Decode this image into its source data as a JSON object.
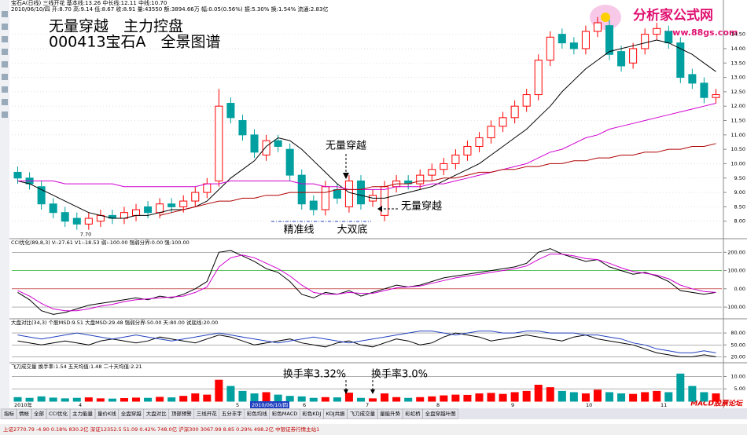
{
  "header": {
    "line1": "宝石A(日线) 三线开花 基本线:13.26 中长线:12.11 中线:10.70",
    "line2": "2010/06/10/四 开:8.70 高:9.14 低:8.67 收:8.91 量:43550 额:3894.66万 幅:0.05(0.56%) 振:5.30% 换:1.54% 流通:2.83亿"
  },
  "overlay_title": {
    "line1": "无量穿越　主力控盘",
    "line2": "000413宝石A　全景图谱"
  },
  "logo": {
    "name": "分析家公式网",
    "url": "www.88gs.com"
  },
  "footer_logo": "MACD股票论坛",
  "chart_data": [
    {
      "type": "candlestick",
      "title": "宝石A(日线)",
      "up_color": "#ff0000",
      "down_color": "#00a0a0",
      "open": [
        9.7,
        9.5,
        9.2,
        8.6,
        8.3,
        8.1,
        7.9,
        8.0,
        8.2,
        8.1,
        8.2,
        8.5,
        8.3,
        8.6,
        8.5,
        8.7,
        9.0,
        9.4,
        12.1,
        11.5,
        11.0,
        10.3,
        10.8,
        10.5,
        9.6,
        8.7,
        8.4,
        9.1,
        8.5,
        9.4,
        8.7,
        8.2,
        9.2,
        9.4,
        9.3,
        9.6,
        9.8,
        10.0,
        10.3,
        10.6,
        10.9,
        11.3,
        11.6,
        12.0,
        12.4,
        13.6,
        14.5,
        14.2,
        14.0,
        14.6,
        14.8,
        13.9,
        13.5,
        14.0,
        14.5,
        14.6,
        14.2,
        13.1,
        12.8,
        12.3
      ],
      "high": [
        9.9,
        9.7,
        9.4,
        8.8,
        8.5,
        8.3,
        8.3,
        8.4,
        8.4,
        8.5,
        8.6,
        8.7,
        8.8,
        8.8,
        8.9,
        9.2,
        9.5,
        12.6,
        12.3,
        11.7,
        11.2,
        11.0,
        11.0,
        10.7,
        9.8,
        8.9,
        9.4,
        9.3,
        9.6,
        9.6,
        9.1,
        9.4,
        9.6,
        9.6,
        9.8,
        10.0,
        10.2,
        10.5,
        10.8,
        11.1,
        11.5,
        11.8,
        12.2,
        12.6,
        13.8,
        14.6,
        14.7,
        14.4,
        14.8,
        15.1,
        15.0,
        14.1,
        14.2,
        14.7,
        14.9,
        14.8,
        14.4,
        13.3,
        13.0,
        12.6
      ],
      "low": [
        9.3,
        9.1,
        8.4,
        8.1,
        7.8,
        7.7,
        7.7,
        7.8,
        7.9,
        7.9,
        8.0,
        8.1,
        8.1,
        8.3,
        8.3,
        8.5,
        8.8,
        9.2,
        11.4,
        10.8,
        10.2,
        10.1,
        10.4,
        9.4,
        8.4,
        8.2,
        8.2,
        8.6,
        8.3,
        8.4,
        8.5,
        8.0,
        9.0,
        9.1,
        9.1,
        9.4,
        9.6,
        9.8,
        10.1,
        10.4,
        10.7,
        11.1,
        11.4,
        11.8,
        12.2,
        13.4,
        14.0,
        13.8,
        13.8,
        14.4,
        13.6,
        13.2,
        13.3,
        13.8,
        14.3,
        14.0,
        12.8,
        12.6,
        12.1,
        12.1
      ],
      "close": [
        9.5,
        9.3,
        8.6,
        8.3,
        8.0,
        7.9,
        8.1,
        8.2,
        8.1,
        8.3,
        8.4,
        8.3,
        8.6,
        8.5,
        8.7,
        9.0,
        9.3,
        12.0,
        11.6,
        11.0,
        10.4,
        10.8,
        10.6,
        9.6,
        8.6,
        8.4,
        9.2,
        8.8,
        9.4,
        8.6,
        8.9,
        9.2,
        9.4,
        9.3,
        9.6,
        9.8,
        10.0,
        10.3,
        10.6,
        10.9,
        11.3,
        11.6,
        12.0,
        12.4,
        13.6,
        14.4,
        14.2,
        14.0,
        14.6,
        14.9,
        13.8,
        13.4,
        14.0,
        14.5,
        14.7,
        14.2,
        13.0,
        12.8,
        12.3,
        12.4
      ],
      "series": [
        {
          "color": "#000000",
          "values": [
            9.4,
            9.3,
            9.1,
            8.9,
            8.7,
            8.5,
            8.3,
            8.2,
            8.1,
            8.1,
            8.2,
            8.2,
            8.3,
            8.4,
            8.4,
            8.5,
            8.7,
            9.1,
            9.5,
            9.8,
            10.1,
            10.6,
            10.9,
            10.8,
            10.5,
            10.1,
            9.7,
            9.3,
            9.0,
            8.9,
            8.8,
            8.8,
            8.9,
            9.0,
            9.1,
            9.2,
            9.4,
            9.6,
            9.8,
            10.0,
            10.3,
            10.6,
            10.9,
            11.2,
            11.6,
            12.0,
            12.5,
            12.9,
            13.3,
            13.6,
            13.9,
            14.0,
            14.1,
            14.2,
            14.3,
            14.2,
            14.0,
            13.8,
            13.5,
            13.2
          ]
        },
        {
          "color": "#d000d0",
          "values": [
            9.4,
            9.4,
            9.4,
            9.4,
            9.3,
            9.3,
            9.3,
            9.3,
            9.3,
            9.2,
            9.2,
            9.2,
            9.2,
            9.2,
            9.2,
            9.2,
            9.3,
            9.3,
            9.4,
            9.4,
            9.4,
            9.4,
            9.4,
            9.4,
            9.3,
            9.3,
            9.2,
            9.2,
            9.1,
            9.1,
            9.1,
            9.1,
            9.2,
            9.2,
            9.2,
            9.3,
            9.3,
            9.4,
            9.5,
            9.6,
            9.7,
            9.8,
            9.9,
            10.0,
            10.2,
            10.4,
            10.5,
            10.7,
            10.9,
            11.0,
            11.2,
            11.3,
            11.4,
            11.5,
            11.6,
            11.7,
            11.8,
            11.9,
            12.0,
            12.1
          ]
        },
        {
          "color": "#b00000",
          "values": [
            null,
            null,
            null,
            null,
            null,
            null,
            null,
            null,
            null,
            null,
            null,
            null,
            8.2,
            8.3,
            8.4,
            8.5,
            8.6,
            8.7,
            8.7,
            8.8,
            8.8,
            8.9,
            8.9,
            9.0,
            9.0,
            9.0,
            9.0,
            9.1,
            9.1,
            9.1,
            9.2,
            9.2,
            9.3,
            9.3,
            9.4,
            9.4,
            9.5,
            9.5,
            9.6,
            9.7,
            9.7,
            9.8,
            9.8,
            9.9,
            9.9,
            10.0,
            10.0,
            10.1,
            10.1,
            10.2,
            10.2,
            10.3,
            10.3,
            10.4,
            10.4,
            10.5,
            10.5,
            10.6,
            10.6,
            10.7
          ]
        }
      ],
      "low_label": {
        "value": 7.7,
        "label": "7.70"
      },
      "annotations": [
        "无量穿越",
        "无量穿越",
        "精准线",
        "大双底"
      ],
      "ylim": [
        7.5,
        15.2
      ],
      "yticks": [
        {
          "value": 8,
          "label": "8.00"
        },
        {
          "value": 8.5,
          "label": "8.50"
        },
        {
          "value": 9,
          "label": "9.00"
        },
        {
          "value": 9.5,
          "label": "9.50"
        },
        {
          "value": 10,
          "label": "10.00"
        },
        {
          "value": 10.5,
          "label": "10.50"
        },
        {
          "value": 11,
          "label": "11.00"
        },
        {
          "value": 11.5,
          "label": "11.50"
        },
        {
          "value": 12,
          "label": "12.00"
        },
        {
          "value": 12.5,
          "label": "12.50"
        },
        {
          "value": 13,
          "label": "13.00"
        },
        {
          "value": 13.5,
          "label": "13.50"
        },
        {
          "value": 14,
          "label": "14.00"
        },
        {
          "value": 14.5,
          "label": "14.50"
        }
      ]
    },
    {
      "type": "line",
      "title": "CCI优化(89,8,3) V:-27.61 V1:-18.53 弱:-100.00 强弱分界:0.00 强:100.00",
      "series": [
        {
          "color": "#000000",
          "values": [
            -20,
            -60,
            -120,
            -140,
            -130,
            -110,
            -90,
            -80,
            -70,
            -60,
            -50,
            -60,
            -40,
            -50,
            -30,
            0,
            40,
            200,
            210,
            180,
            150,
            110,
            90,
            40,
            -30,
            -50,
            -20,
            -30,
            -10,
            -40,
            -20,
            0,
            20,
            10,
            20,
            40,
            60,
            70,
            80,
            90,
            100,
            110,
            120,
            140,
            200,
            220,
            190,
            170,
            150,
            160,
            120,
            100,
            80,
            90,
            70,
            40,
            -10,
            -20,
            -30,
            -20
          ]
        },
        {
          "color": "#d000d0",
          "values": [
            -10,
            -40,
            -80,
            -110,
            -120,
            -120,
            -110,
            -95,
            -85,
            -70,
            -60,
            -55,
            -50,
            -45,
            -40,
            -20,
            10,
            120,
            170,
            185,
            170,
            140,
            110,
            70,
            20,
            -20,
            -30,
            -30,
            -20,
            -25,
            -25,
            -10,
            5,
            10,
            15,
            30,
            45,
            60,
            70,
            80,
            90,
            100,
            110,
            125,
            160,
            190,
            190,
            180,
            165,
            160,
            140,
            115,
            95,
            85,
            75,
            55,
            20,
            0,
            -15,
            -20
          ]
        }
      ],
      "grid_colors": [
        "#808080",
        "#00a000",
        "#b00000",
        "#808080"
      ],
      "ylim": [
        -160,
        240
      ],
      "yticks": [
        {
          "value": 200,
          "label": "200.00"
        },
        {
          "value": 100,
          "label": "100.00"
        },
        {
          "value": 0,
          "label": "0.00"
        },
        {
          "value": -100,
          "label": "-100.00"
        }
      ]
    },
    {
      "type": "line",
      "title": "大盘对比(34,3) 个股MSD:9.51 大盘MSD:29.48 强弱分界:50.00 天:80.00 试底线:20.00",
      "series": [
        {
          "color": "#000000",
          "values": [
            60,
            55,
            50,
            55,
            60,
            55,
            50,
            60,
            65,
            60,
            55,
            60,
            70,
            65,
            60,
            55,
            65,
            75,
            70,
            60,
            50,
            55,
            60,
            65,
            55,
            50,
            45,
            55,
            60,
            50,
            45,
            55,
            65,
            60,
            50,
            55,
            70,
            80,
            75,
            70,
            60,
            65,
            70,
            75,
            70,
            65,
            60,
            70,
            75,
            65,
            60,
            55,
            50,
            40,
            30,
            25,
            20,
            20,
            25,
            20
          ]
        },
        {
          "color": "#2040c0",
          "values": [
            75,
            70,
            65,
            70,
            75,
            80,
            75,
            70,
            65,
            70,
            75,
            70,
            65,
            60,
            65,
            70,
            75,
            80,
            75,
            70,
            65,
            60,
            55,
            60,
            65,
            70,
            65,
            60,
            55,
            60,
            65,
            70,
            75,
            80,
            85,
            85,
            80,
            75,
            80,
            85,
            85,
            80,
            80,
            85,
            85,
            80,
            80,
            80,
            75,
            75,
            70,
            65,
            55,
            50,
            40,
            35,
            30,
            30,
            35,
            30
          ]
        }
      ],
      "grid_colors": [
        "#808080",
        "#808080",
        "#808080"
      ],
      "ylim": [
        5,
        100
      ],
      "yticks": [
        {
          "value": 80,
          "label": "80.00"
        },
        {
          "value": 50,
          "label": "50.00"
        },
        {
          "value": 20,
          "label": "20.00"
        }
      ]
    },
    {
      "type": "bar",
      "title": "飞刀成交量 换手率:1.54 五天均值:1.48 二十天均值:2.21",
      "up_color": "#ff0000",
      "down_color": "#00a0a0",
      "values": [
        1.5,
        1.2,
        1.8,
        1.3,
        1.0,
        1.2,
        1.4,
        1.0,
        0.9,
        1.1,
        1.3,
        1.2,
        1.6,
        1.4,
        2.0,
        3.0,
        2.5,
        8.5,
        6.0,
        4.0,
        3.0,
        3.5,
        2.5,
        2.0,
        1.8,
        1.2,
        1.5,
        1.4,
        3.3,
        1.2,
        1.0,
        3.0,
        1.5,
        1.2,
        1.5,
        1.8,
        2.2,
        2.5,
        2.4,
        3.0,
        3.2,
        2.8,
        3.5,
        4.0,
        6.5,
        5.5,
        4.0,
        3.5,
        3.0,
        4.5,
        3.5,
        3.0,
        2.8,
        3.5,
        4.0,
        3.5,
        11.0,
        6.0,
        3.5,
        3.0
      ],
      "annotations": [
        "换手率3.32%",
        "换手率3.0%"
      ],
      "grid_colors": [
        "#808080",
        "#808080"
      ],
      "ylim": [
        0,
        13
      ],
      "yticks": [
        {
          "value": 10,
          "label": "10.00"
        },
        {
          "value": 5,
          "label": "5.00"
        }
      ]
    }
  ],
  "x_labels": [
    "2010年",
    "4",
    "5",
    "6",
    "7",
    "8",
    "9",
    "10",
    "11"
  ],
  "cursor_date": "2010/06/10/四",
  "tabs": [
    "指标",
    "情帐",
    "全部",
    "CCI优化",
    "主力能量",
    "量价K线",
    "全盘穿越",
    "大盘对比",
    "顶部预警",
    "三线开花",
    "五分丰宇",
    "彩色均线",
    "彩色MACD",
    "彩色KDJ",
    "KDJ共振",
    "飞刀成交量",
    "量能升势",
    "彩虹桥",
    "全盘穿越叶图"
  ],
  "status": "上证2770.79 -4.90 0.18% 830.2亿 深证12352.5 51.09 0.42% 748.0亿 沪深300 3067.99 8.85 0.29% 498.2亿 中银证券行情主站1"
}
